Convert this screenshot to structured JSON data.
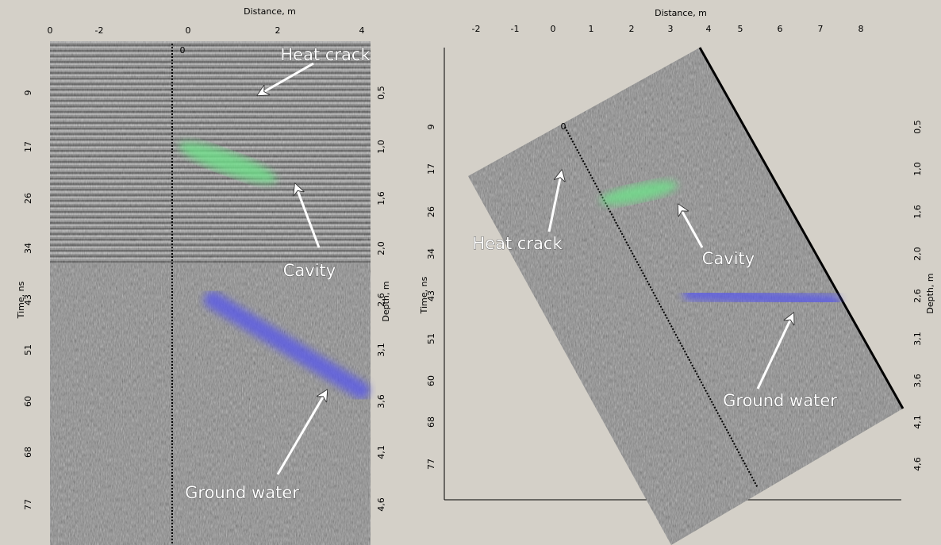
{
  "panels": [
    {
      "x_axis_title": "Distance, m",
      "x_tick_labels": [
        "0",
        "-2",
        "0",
        "2",
        "4"
      ],
      "marker": "0",
      "left_axis_title": "Time, ns",
      "left_tick_labels": [
        "9",
        "17",
        "26",
        "34",
        "43",
        "51",
        "60",
        "68",
        "77"
      ],
      "right_axis_title": "Depth, m",
      "right_tick_labels": [
        "0,5",
        "1,0",
        "1,6",
        "2,0",
        "2,6",
        "3,1",
        "3,6",
        "4,1",
        "4,6"
      ],
      "annotations": [
        "Heat crack",
        "Cavity",
        "Ground water"
      ]
    },
    {
      "x_axis_title": "Distance, m",
      "x_tick_labels": [
        "-2",
        "-1",
        "0",
        "1",
        "2",
        "3",
        "4",
        "5",
        "6",
        "7",
        "8"
      ],
      "marker": "0",
      "left_axis_title": "Time, ns",
      "left_tick_labels": [
        "9",
        "17",
        "26",
        "34",
        "43",
        "51",
        "60",
        "68",
        "77"
      ],
      "right_axis_title": "Depth, m",
      "right_tick_labels": [
        "0,5",
        "1,0",
        "1,6",
        "2,0",
        "2,6",
        "3,1",
        "3,6",
        "4,1",
        "4,6"
      ],
      "annotations": [
        "Heat crack",
        "Cavity",
        "Ground water"
      ]
    }
  ]
}
